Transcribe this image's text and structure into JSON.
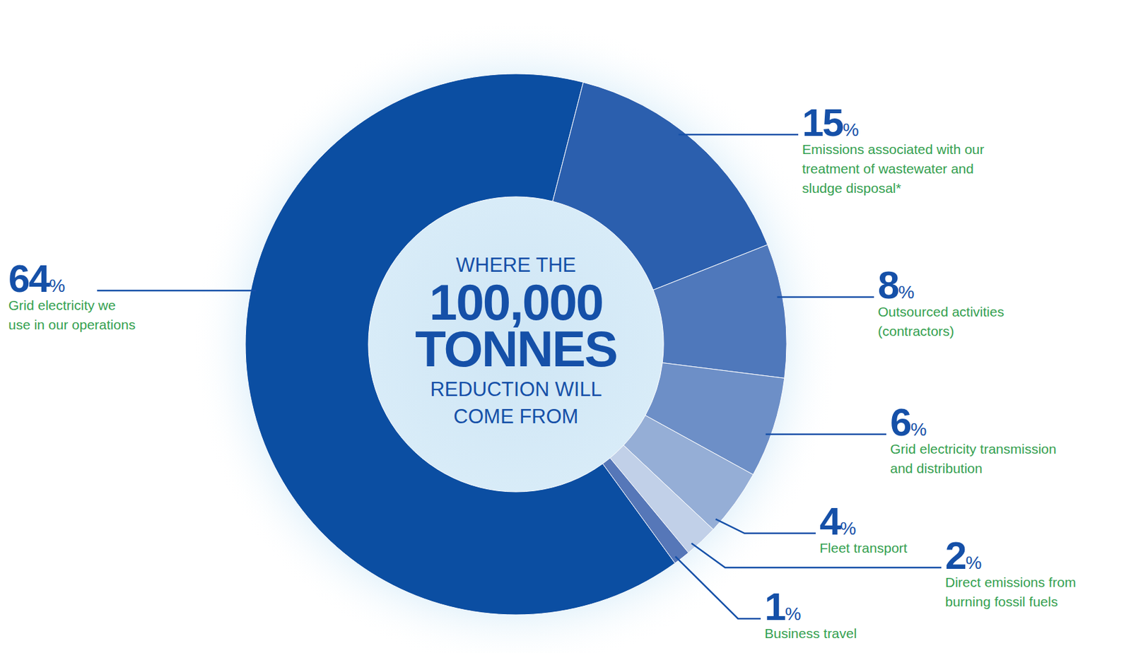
{
  "chart_data": {
    "type": "donut",
    "center_text": [
      "WHERE THE",
      "100,000",
      "TONNES",
      "REDUCTION WILL",
      "COME FROM"
    ],
    "categories": [
      "Grid electricity we use in our operations",
      "Emissions associated with our treatment of wastewater and sludge disposal*",
      "Outsourced activities (contractors)",
      "Grid electricity transmission and distribution",
      "Fleet transport",
      "Direct emissions from burning fossil fuels",
      "Business travel"
    ],
    "values": [
      64,
      15,
      8,
      6,
      4,
      2,
      1
    ],
    "value_labels": [
      "64%",
      "15%",
      "8%",
      "6%",
      "4%",
      "2%",
      "1%"
    ],
    "colors": [
      "#0b4ea2",
      "#2b5fae",
      "#4f78bb",
      "#6d8fc7",
      "#95aed6",
      "#c1d0e8",
      "#5677b8"
    ],
    "data_labels": true
  }
}
